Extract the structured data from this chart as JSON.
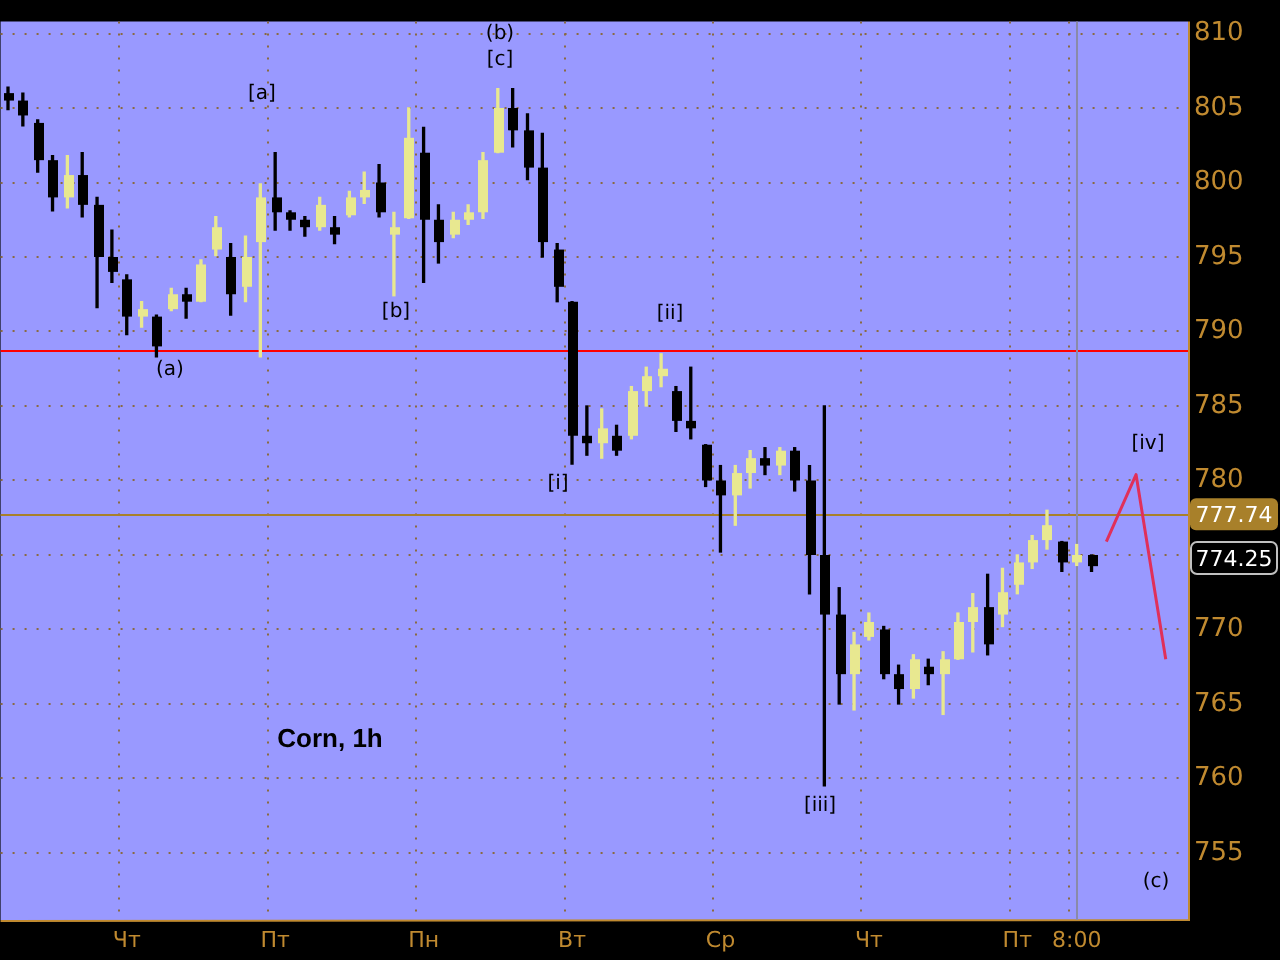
{
  "chart_data": {
    "type": "candlestick",
    "title": "Corn, 1h",
    "categories": [
      null,
      null,
      null,
      null,
      null,
      null,
      null,
      null,
      "Чт",
      null,
      null,
      null,
      null,
      null,
      null,
      null,
      null,
      null,
      "Пт",
      null,
      null,
      null,
      null,
      null,
      null,
      null,
      null,
      null,
      "Пн",
      null,
      null,
      null,
      null,
      null,
      null,
      null,
      null,
      null,
      "Вт",
      null,
      null,
      null,
      null,
      null,
      null,
      null,
      null,
      null,
      "Ср",
      null,
      null,
      null,
      null,
      null,
      null,
      null,
      null,
      null,
      "Чт",
      null,
      null,
      null,
      null,
      null,
      null,
      null,
      null,
      null,
      "Пт",
      null,
      null,
      null,
      "8:00",
      null,
      null,
      null,
      null,
      null,
      null,
      null
    ],
    "ohlc": [
      [
        806,
        806.4,
        804.9,
        805.5
      ],
      [
        805.5,
        806,
        803.8,
        804.5
      ],
      [
        804,
        804.2,
        800.7,
        801.5
      ],
      [
        801.5,
        801.8,
        798.1,
        799
      ],
      [
        799,
        801.8,
        798.3,
        800.5
      ],
      [
        800.5,
        802,
        797.7,
        798.5
      ],
      [
        798.5,
        799,
        791.6,
        795
      ],
      [
        795,
        796.8,
        793.3,
        794
      ],
      [
        793.5,
        793.8,
        789.8,
        791
      ],
      [
        791,
        792,
        790.3,
        791.5
      ],
      [
        791,
        791.1,
        788.3,
        789
      ],
      [
        791.5,
        792.9,
        791.4,
        792.5
      ],
      [
        792.5,
        792.9,
        790.9,
        792
      ],
      [
        792,
        794.8,
        792,
        794.5
      ],
      [
        795.5,
        797.7,
        795.1,
        797
      ],
      [
        795,
        795.9,
        791.1,
        792.5
      ],
      [
        793,
        796.4,
        792,
        795
      ],
      [
        796,
        799.9,
        788.3,
        799
      ],
      [
        799,
        802,
        796.8,
        798
      ],
      [
        798,
        798.1,
        796.8,
        797.5
      ],
      [
        797.5,
        797.7,
        796.4,
        797
      ],
      [
        797,
        799,
        796.8,
        798.5
      ],
      [
        797,
        797.7,
        795.9,
        796.5
      ],
      [
        797.8,
        799.4,
        797.7,
        799
      ],
      [
        799,
        800.7,
        798.6,
        799.5
      ],
      [
        800,
        801.2,
        797.7,
        798
      ],
      [
        796.5,
        798,
        792.4,
        797
      ],
      [
        797.6,
        805,
        797.6,
        803
      ],
      [
        802,
        803.7,
        793.3,
        797.5
      ],
      [
        797.5,
        798.5,
        794.6,
        796
      ],
      [
        796.5,
        798,
        796.3,
        797.5
      ],
      [
        797.5,
        798.5,
        797.2,
        798
      ],
      [
        798,
        802,
        797.6,
        801.5
      ],
      [
        802,
        806.3,
        802,
        805
      ],
      [
        805,
        806.3,
        802.4,
        803.5
      ],
      [
        803.5,
        804.6,
        800.2,
        801
      ],
      [
        801,
        803.3,
        795,
        796
      ],
      [
        795.5,
        795.9,
        792,
        793
      ],
      [
        792,
        792,
        781.1,
        783
      ],
      [
        783,
        785,
        781.7,
        782.5
      ],
      [
        782.5,
        784.8,
        781.5,
        783.5
      ],
      [
        783,
        783.7,
        781.7,
        782
      ],
      [
        783,
        786.3,
        782.8,
        786
      ],
      [
        786,
        787.6,
        785,
        787
      ],
      [
        787,
        788.5,
        786.3,
        787.5
      ],
      [
        786,
        786.3,
        783.3,
        784
      ],
      [
        784,
        787.6,
        782.8,
        783.5
      ],
      [
        782.4,
        782.4,
        779.6,
        780
      ],
      [
        780,
        781,
        775.2,
        779
      ],
      [
        779,
        781,
        777,
        780.5
      ],
      [
        780.5,
        782,
        779.5,
        781.5
      ],
      [
        781.5,
        782.2,
        780.4,
        781
      ],
      [
        781,
        782.2,
        780.4,
        782
      ],
      [
        782,
        782.2,
        779.3,
        780
      ],
      [
        780,
        781,
        772.4,
        775
      ],
      [
        775,
        785,
        759.5,
        771
      ],
      [
        771,
        772.8,
        765,
        767
      ],
      [
        767,
        769.8,
        764.6,
        769
      ],
      [
        769.5,
        771.1,
        769.3,
        770.5
      ],
      [
        770,
        770.2,
        766.7,
        767
      ],
      [
        767,
        767.6,
        765,
        766
      ],
      [
        766,
        768.3,
        765.4,
        768
      ],
      [
        767.5,
        768,
        766.3,
        767
      ],
      [
        767,
        768.5,
        764.3,
        768
      ],
      [
        768,
        771.1,
        768,
        770.5
      ],
      [
        770.5,
        772.4,
        768.5,
        771.5
      ],
      [
        771.5,
        773.7,
        768.3,
        769
      ],
      [
        771,
        774.1,
        770.2,
        772.5
      ],
      [
        773,
        775,
        772.4,
        774.5
      ],
      [
        774.5,
        776.3,
        774.1,
        776
      ],
      [
        776,
        778,
        775.4,
        777
      ],
      [
        775.9,
        775.9,
        773.9,
        774.5
      ],
      [
        774.5,
        775.7,
        774.3,
        775
      ],
      [
        775,
        775,
        773.9,
        774.25
      ],
      null,
      null,
      null,
      null,
      null,
      null
    ],
    "colors": [
      "#000000",
      "#000000",
      "#000000",
      "#000000",
      "#e8e890",
      "#000000",
      "#000000",
      "#000000",
      "#000000",
      "#e8e890",
      "#000000",
      "#e8e890",
      "#000000",
      "#e8e890",
      "#e8e890",
      "#000000",
      "#e8e890",
      "#e8e890",
      "#000000",
      "#000000",
      "#000000",
      "#e8e890",
      "#000000",
      "#e8e890",
      "#e8e890",
      "#000000",
      "#e8e890",
      "#e8e890",
      "#000000",
      "#000000",
      "#e8e890",
      "#e8e890",
      "#e8e890",
      "#e8e890",
      "#000000",
      "#000000",
      "#000000",
      "#000000",
      "#000000",
      "#000000",
      "#e8e890",
      "#000000",
      "#e8e890",
      "#e8e890",
      "#e8e890",
      "#000000",
      "#000000",
      "#000000",
      "#000000",
      "#e8e890",
      "#e8e890",
      "#000000",
      "#e8e890",
      "#000000",
      "#000000",
      "#000000",
      "#000000",
      "#e8e890",
      "#e8e890",
      "#000000",
      "#000000",
      "#e8e890",
      "#000000",
      "#e8e890",
      "#e8e890",
      "#e8e890",
      "#000000",
      "#e8e890",
      "#e8e890",
      "#e8e890",
      "#e8e890",
      "#000000",
      "#e8e890",
      "#000000",
      null,
      null,
      null,
      null,
      null,
      null
    ],
    "series": [
      {
        "type": "line",
        "color": "#e0305a",
        "values": [
          null,
          null,
          null,
          null,
          null,
          null,
          null,
          null,
          null,
          null,
          null,
          null,
          null,
          null,
          null,
          null,
          null,
          null,
          null,
          null,
          null,
          null,
          null,
          null,
          null,
          null,
          null,
          null,
          null,
          null,
          null,
          null,
          null,
          null,
          null,
          null,
          null,
          null,
          null,
          null,
          null,
          null,
          null,
          null,
          null,
          null,
          null,
          null,
          null,
          null,
          null,
          null,
          null,
          null,
          null,
          null,
          null,
          null,
          null,
          null,
          null,
          null,
          null,
          null,
          null,
          null,
          null,
          null,
          null,
          null,
          null,
          null,
          null,
          null,
          775.9,
          null,
          780.4,
          null,
          768,
          null
        ]
      }
    ],
    "ylim": [
      750.5,
      810.8
    ],
    "yticks": [
      755,
      760,
      765,
      770,
      {
        "value": 775,
        "label": null
      },
      780,
      785,
      790,
      795,
      800,
      805,
      810
    ],
    "grid": true,
    "legend": false,
    "marker": "none",
    "ref_lines": [
      {
        "axis": "y",
        "value": 788.8,
        "color": "#ff0000"
      },
      {
        "axis": "y",
        "value": 777.74,
        "label": "777.74",
        "color": "#a8802a"
      },
      {
        "axis": "x",
        "value": "8:00",
        "color": "#8a8aa8"
      }
    ],
    "annotations": [
      "774.25",
      "(a)",
      "[a]",
      "[b]",
      "(b)",
      "[c]",
      "[i]",
      "[ii]",
      "[iii]",
      "[iv]",
      "(c)"
    ]
  }
}
